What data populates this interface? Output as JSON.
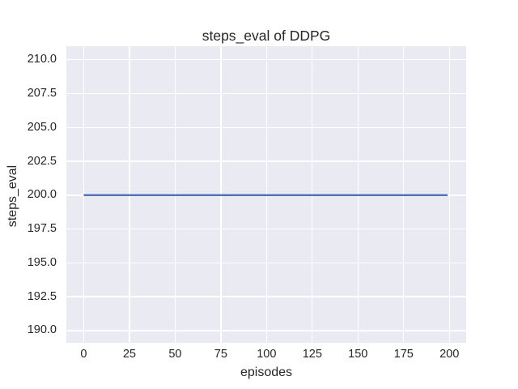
{
  "chart_data": {
    "type": "line",
    "title": "steps_eval of DDPG",
    "xlabel": "episodes",
    "ylabel": "steps_eval",
    "x_ticks": [
      0,
      25,
      50,
      75,
      100,
      125,
      150,
      175,
      200
    ],
    "x_tick_labels": [
      "0",
      "25",
      "50",
      "75",
      "100",
      "125",
      "150",
      "175",
      "200"
    ],
    "y_ticks": [
      190.0,
      192.5,
      195.0,
      197.5,
      200.0,
      202.5,
      205.0,
      207.5,
      210.0
    ],
    "y_tick_labels": [
      "190.0",
      "192.5",
      "195.0",
      "197.5",
      "200.0",
      "202.5",
      "205.0",
      "207.5",
      "210.0"
    ],
    "xlim": [
      -9.5,
      209.2
    ],
    "ylim": [
      189.1,
      211.0
    ],
    "grid": true,
    "legend": false,
    "series": [
      {
        "name": "DDPG",
        "color": "#4c72b0",
        "x": [
          0,
          199
        ],
        "y": [
          200.0,
          200.0
        ],
        "shape": "constant horizontal line at y = 200 across all episodes"
      }
    ],
    "colors": {
      "figure_bg": "#ffffff",
      "plot_bg": "#eaeaf2",
      "grid": "#ffffff",
      "text": "#262626",
      "line": "#4c72b0"
    }
  }
}
